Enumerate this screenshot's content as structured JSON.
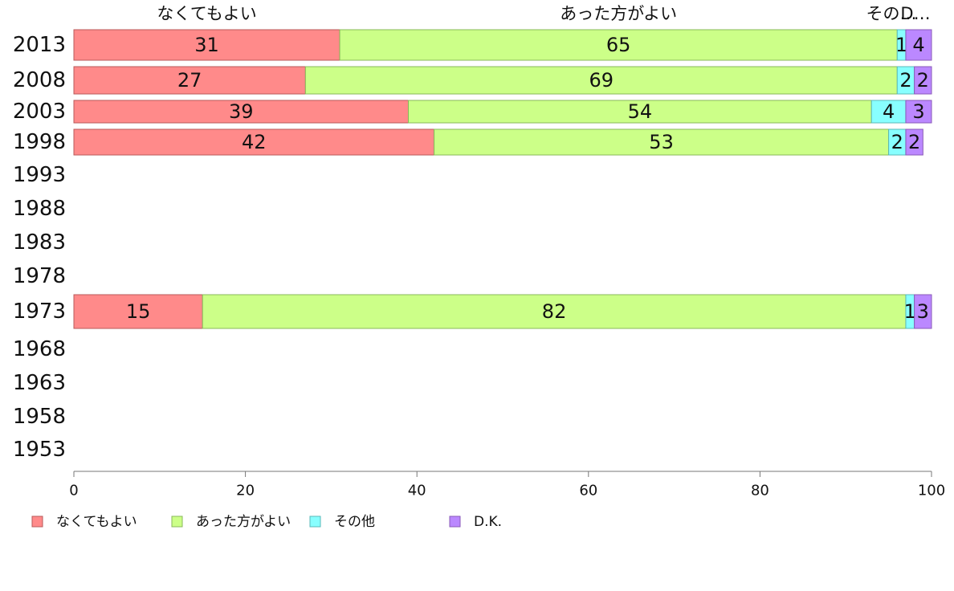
{
  "chart_data": {
    "type": "bar",
    "orientation": "horizontal",
    "stacked": true,
    "categories": [
      "2013",
      "2008",
      "2003",
      "1998",
      "1993",
      "1988",
      "1983",
      "1978",
      "1973",
      "1968",
      "1963",
      "1958",
      "1953"
    ],
    "series": [
      {
        "name": "なくてもよい",
        "values": [
          31,
          27,
          39,
          42,
          null,
          null,
          null,
          null,
          15,
          null,
          null,
          null,
          null
        ]
      },
      {
        "name": "あった方がよい",
        "values": [
          65,
          69,
          54,
          53,
          null,
          null,
          null,
          null,
          82,
          null,
          null,
          null,
          null
        ]
      },
      {
        "name": "その他",
        "values": [
          1,
          2,
          4,
          2,
          null,
          null,
          null,
          null,
          1,
          null,
          null,
          null,
          null
        ]
      },
      {
        "name": "D.K.",
        "values": [
          4,
          2,
          3,
          2,
          null,
          null,
          null,
          null,
          3,
          null,
          null,
          null,
          null
        ]
      }
    ],
    "top_labels": [
      "なくてもよい",
      "あった方がよい",
      "その…",
      "D…"
    ],
    "xlim": [
      0,
      100
    ],
    "xticks": [
      0,
      20,
      40,
      60,
      80,
      100
    ],
    "grid": false,
    "legend_position": "bottom-left",
    "colors": [
      "#ff8a8a",
      "#ccff88",
      "#88ffff",
      "#bb88ff"
    ]
  }
}
